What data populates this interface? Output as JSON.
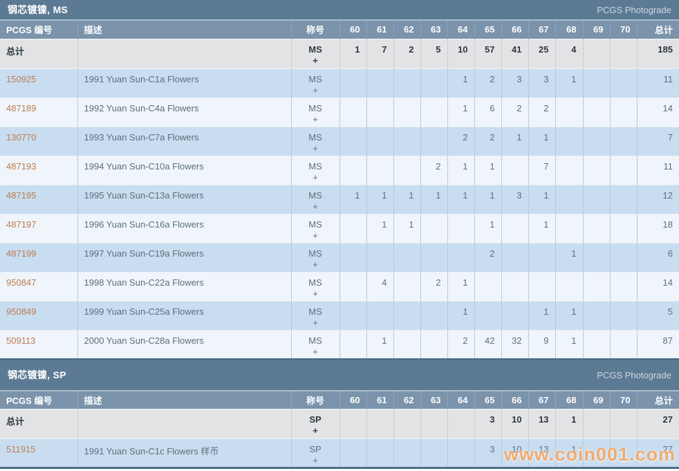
{
  "page": {
    "photograde_label": "PCGS Photograde",
    "watermark": "www.coin001.com"
  },
  "columns": {
    "pcgs_number": "PCGS 编号",
    "description": "描述",
    "designation": "称号",
    "total": "总计"
  },
  "grade_columns": [
    "60",
    "61",
    "62",
    "63",
    "64",
    "65",
    "66",
    "67",
    "68",
    "69",
    "70"
  ],
  "colors": {
    "section_header_bg": "#5d7a94",
    "column_header_bg": "#7b93ab",
    "totals_row_bg": "#e3e3e5",
    "row_alt_blue": "#c9ddf0",
    "row_alt_white": "#eff5fa",
    "table_bottom_border": "#4e6c86",
    "pcgs_link": "#bd7b52",
    "watermark_orange": "#f2a25e"
  },
  "sections": [
    {
      "title": "钢芯镀镍, MS",
      "designation": "MS",
      "designation_suffix": "+",
      "totals_label": "总计",
      "totals": {
        "grades": {
          "60": "1",
          "61": "7",
          "62": "2",
          "63": "5",
          "64": "10",
          "65": "57",
          "66": "41",
          "67": "25",
          "68": "4"
        },
        "total": "185"
      },
      "rows": [
        {
          "pcgs_number": "150925",
          "description": "1991 Yuan Sun-C1a Flowers",
          "grades": {
            "64": "1",
            "65": "2",
            "66": "3",
            "67": "3",
            "68": "1"
          },
          "total": "11"
        },
        {
          "pcgs_number": "487189",
          "description": "1992 Yuan Sun-C4a Flowers",
          "grades": {
            "64": "1",
            "65": "6",
            "66": "2",
            "67": "2"
          },
          "total": "14"
        },
        {
          "pcgs_number": "130770",
          "description": "1993 Yuan Sun-C7a Flowers",
          "grades": {
            "64": "2",
            "65": "2",
            "66": "1",
            "67": "1"
          },
          "total": "7"
        },
        {
          "pcgs_number": "487193",
          "description": "1994 Yuan Sun-C10a Flowers",
          "grades": {
            "63": "2",
            "64": "1",
            "65": "1",
            "67": "7"
          },
          "total": "11"
        },
        {
          "pcgs_number": "487195",
          "description": "1995 Yuan Sun-C13a Flowers",
          "grades": {
            "60": "1",
            "61": "1",
            "62": "1",
            "63": "1",
            "64": "1",
            "65": "1",
            "66": "3",
            "67": "1"
          },
          "total": "12"
        },
        {
          "pcgs_number": "487197",
          "description": "1996 Yuan Sun-C16a Flowers",
          "grades": {
            "61": "1",
            "62": "1",
            "65": "1",
            "67": "1"
          },
          "total": "18"
        },
        {
          "pcgs_number": "487199",
          "description": "1997 Yuan Sun-C19a Flowers",
          "grades": {
            "65": "2",
            "68": "1"
          },
          "total": "6"
        },
        {
          "pcgs_number": "950847",
          "description": "1998 Yuan Sun-C22a Flowers",
          "grades": {
            "61": "4",
            "63": "2",
            "64": "1"
          },
          "total": "14"
        },
        {
          "pcgs_number": "950849",
          "description": "1999 Yuan Sun-C25a Flowers",
          "grades": {
            "64": "1",
            "67": "1",
            "68": "1"
          },
          "total": "5"
        },
        {
          "pcgs_number": "509113",
          "description": "2000 Yuan Sun-C28a Flowers",
          "grades": {
            "61": "1",
            "64": "2",
            "65": "42",
            "66": "32",
            "67": "9",
            "68": "1"
          },
          "total": "87"
        }
      ]
    },
    {
      "title": "钢芯镀镍, SP",
      "designation": "SP",
      "designation_suffix": "+",
      "totals_label": "总计",
      "totals": {
        "grades": {
          "65": "3",
          "66": "10",
          "67": "13",
          "68": "1"
        },
        "total": "27"
      },
      "rows": [
        {
          "pcgs_number": "511915",
          "description": "1991 Yuan Sun-C1c Flowers 样币",
          "grades": {
            "65": "3",
            "66": "10",
            "67": "13",
            "68": "1"
          },
          "total": "27"
        }
      ]
    }
  ]
}
